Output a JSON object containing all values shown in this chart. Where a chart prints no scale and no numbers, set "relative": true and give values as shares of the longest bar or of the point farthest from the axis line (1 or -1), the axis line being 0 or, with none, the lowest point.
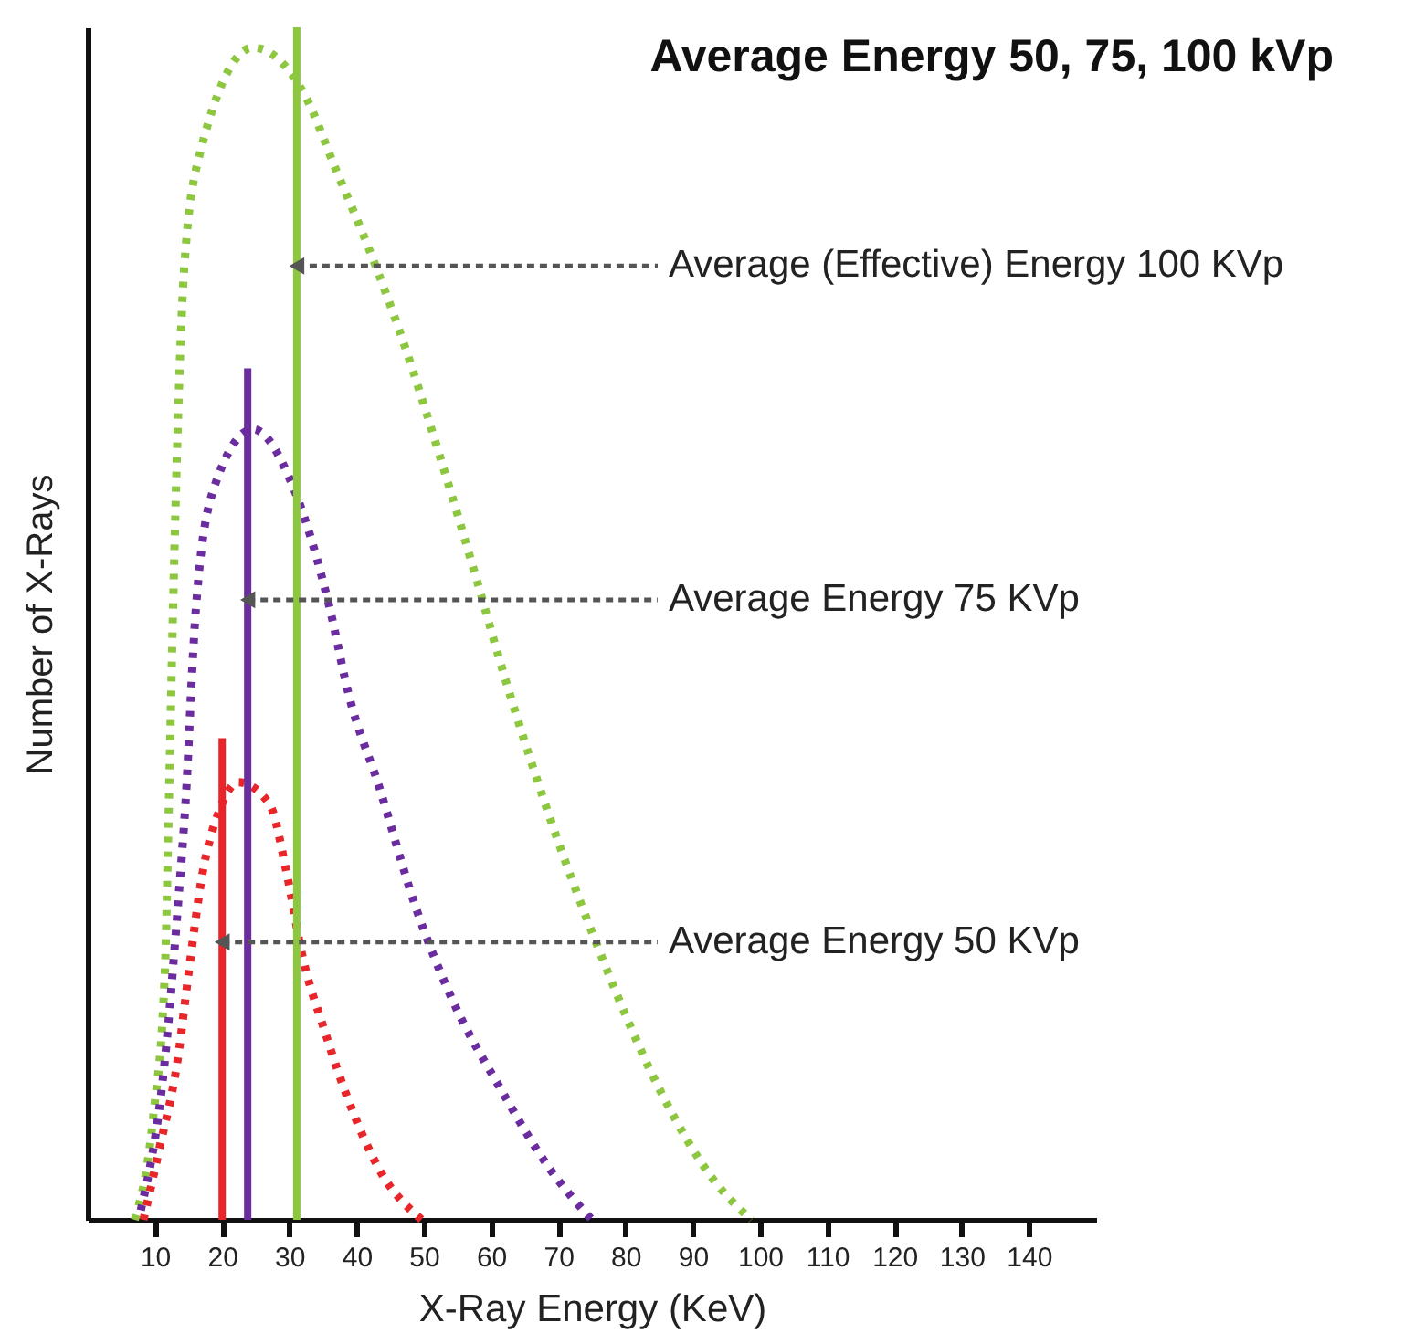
{
  "chart_data": {
    "type": "line",
    "title": "Average Energy 50, 75, 100 kVp",
    "xlabel": "X-Ray Energy (KeV)",
    "ylabel": "Number of X-Rays",
    "relative": true,
    "xlim": [
      0,
      150
    ],
    "xticks": [
      10,
      20,
      30,
      40,
      50,
      60,
      70,
      80,
      90,
      100,
      110,
      120,
      130,
      140
    ],
    "tick_labels": "x",
    "grid": false,
    "marker": "none",
    "series": [
      {
        "color": "#8dc63f",
        "line_style": "dotted",
        "x": [
          7.0,
          9.7,
          11.5,
          12.0,
          12.7,
          13.4,
          14.3,
          16.5,
          24.6,
          32.4,
          36.9,
          41.5,
          46.9,
          52.4,
          57.8,
          61.4,
          68.7,
          76.0,
          85.1,
          93.3,
          98.7
        ],
        "values": [
          0,
          0.084,
          0.211,
          0.33,
          0.513,
          0.666,
          0.793,
          0.89,
          0.983,
          0.942,
          0.881,
          0.819,
          0.737,
          0.64,
          0.538,
          0.467,
          0.338,
          0.227,
          0.109,
          0.032,
          0
        ]
      },
      {
        "color": "#6a2c9f",
        "line_style": "dotted",
        "x": [
          7.9,
          11.5,
          13.4,
          14.7,
          15.6,
          16.1,
          18.8,
          24.6,
          30.6,
          36.0,
          38.8,
          43.3,
          48.8,
          54.2,
          61.5,
          68.7,
          75.0
        ],
        "values": [
          0.008,
          0.135,
          0.262,
          0.364,
          0.467,
          0.513,
          0.614,
          0.663,
          0.614,
          0.513,
          0.441,
          0.364,
          0.262,
          0.185,
          0.109,
          0.043,
          0
        ]
      },
      {
        "color": "#e8262a",
        "line_style": "dotted",
        "x": [
          8.3,
          10.6,
          13.4,
          15.1,
          17.0,
          19.7,
          22.4,
          27.0,
          29.7,
          31.9,
          35.1,
          38.8,
          43.3,
          49.7
        ],
        "values": [
          0,
          0.058,
          0.135,
          0.211,
          0.288,
          0.345,
          0.367,
          0.349,
          0.288,
          0.222,
          0.161,
          0.1,
          0.043,
          0
        ]
      },
      {
        "color": "#8dc63f",
        "line_style": "solid",
        "x": [
          31.1,
          31.1
        ],
        "values": [
          0,
          1
        ]
      },
      {
        "color": "#6a2c9f",
        "line_style": "solid",
        "x": [
          23.8,
          23.8
        ],
        "values": [
          0,
          0.714
        ]
      },
      {
        "color": "#e8262a",
        "line_style": "solid",
        "x": [
          20.0,
          20.0
        ],
        "values": [
          0,
          0.404
        ]
      }
    ],
    "annotations": [
      {
        "text": "Average (Effective) Energy 100 KVp",
        "x": 31.1,
        "y": 0.8
      },
      {
        "text": "Average Energy 75 KVp",
        "x": 23.8,
        "y": 0.52
      },
      {
        "text": "Average Energy 50 KVp",
        "x": 20.0,
        "y": 0.233
      }
    ]
  }
}
